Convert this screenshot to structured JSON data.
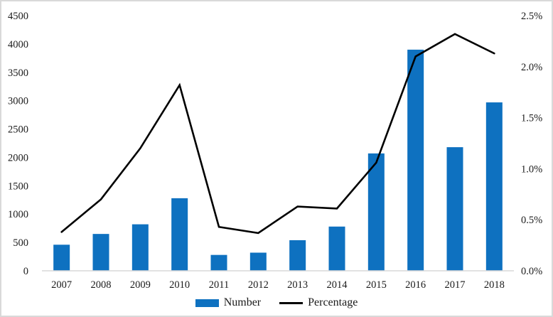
{
  "chart_data": {
    "type": "combo-bar-line",
    "title": "",
    "categories": [
      "2007",
      "2008",
      "2009",
      "2010",
      "2011",
      "2012",
      "2013",
      "2014",
      "2015",
      "2016",
      "2017",
      "2018"
    ],
    "series": [
      {
        "name": "Number",
        "type": "bar",
        "axis": "left",
        "color": "#0e71c0",
        "values": [
          460,
          650,
          820,
          1280,
          280,
          320,
          540,
          780,
          2070,
          3900,
          2180,
          2970
        ]
      },
      {
        "name": "Percentage",
        "type": "line",
        "axis": "right",
        "color": "#000000",
        "values": [
          0.38,
          0.7,
          1.2,
          1.82,
          0.43,
          0.37,
          0.63,
          0.61,
          1.06,
          2.1,
          2.32,
          2.13
        ]
      }
    ],
    "left_axis": {
      "min": 0,
      "max": 4500,
      "step": 500,
      "tick_labels": [
        "0",
        "500",
        "1000",
        "1500",
        "2000",
        "2500",
        "3000",
        "3500",
        "4000",
        "4500"
      ]
    },
    "right_axis": {
      "min": 0,
      "max": 2.5,
      "step": 0.5,
      "tick_labels": [
        "0.0%",
        "0.5%",
        "1.0%",
        "1.5%",
        "2.0%",
        "2.5%"
      ]
    },
    "grid": false,
    "legend_position": "bottom",
    "axis_line_color": "#d9d9d9"
  }
}
